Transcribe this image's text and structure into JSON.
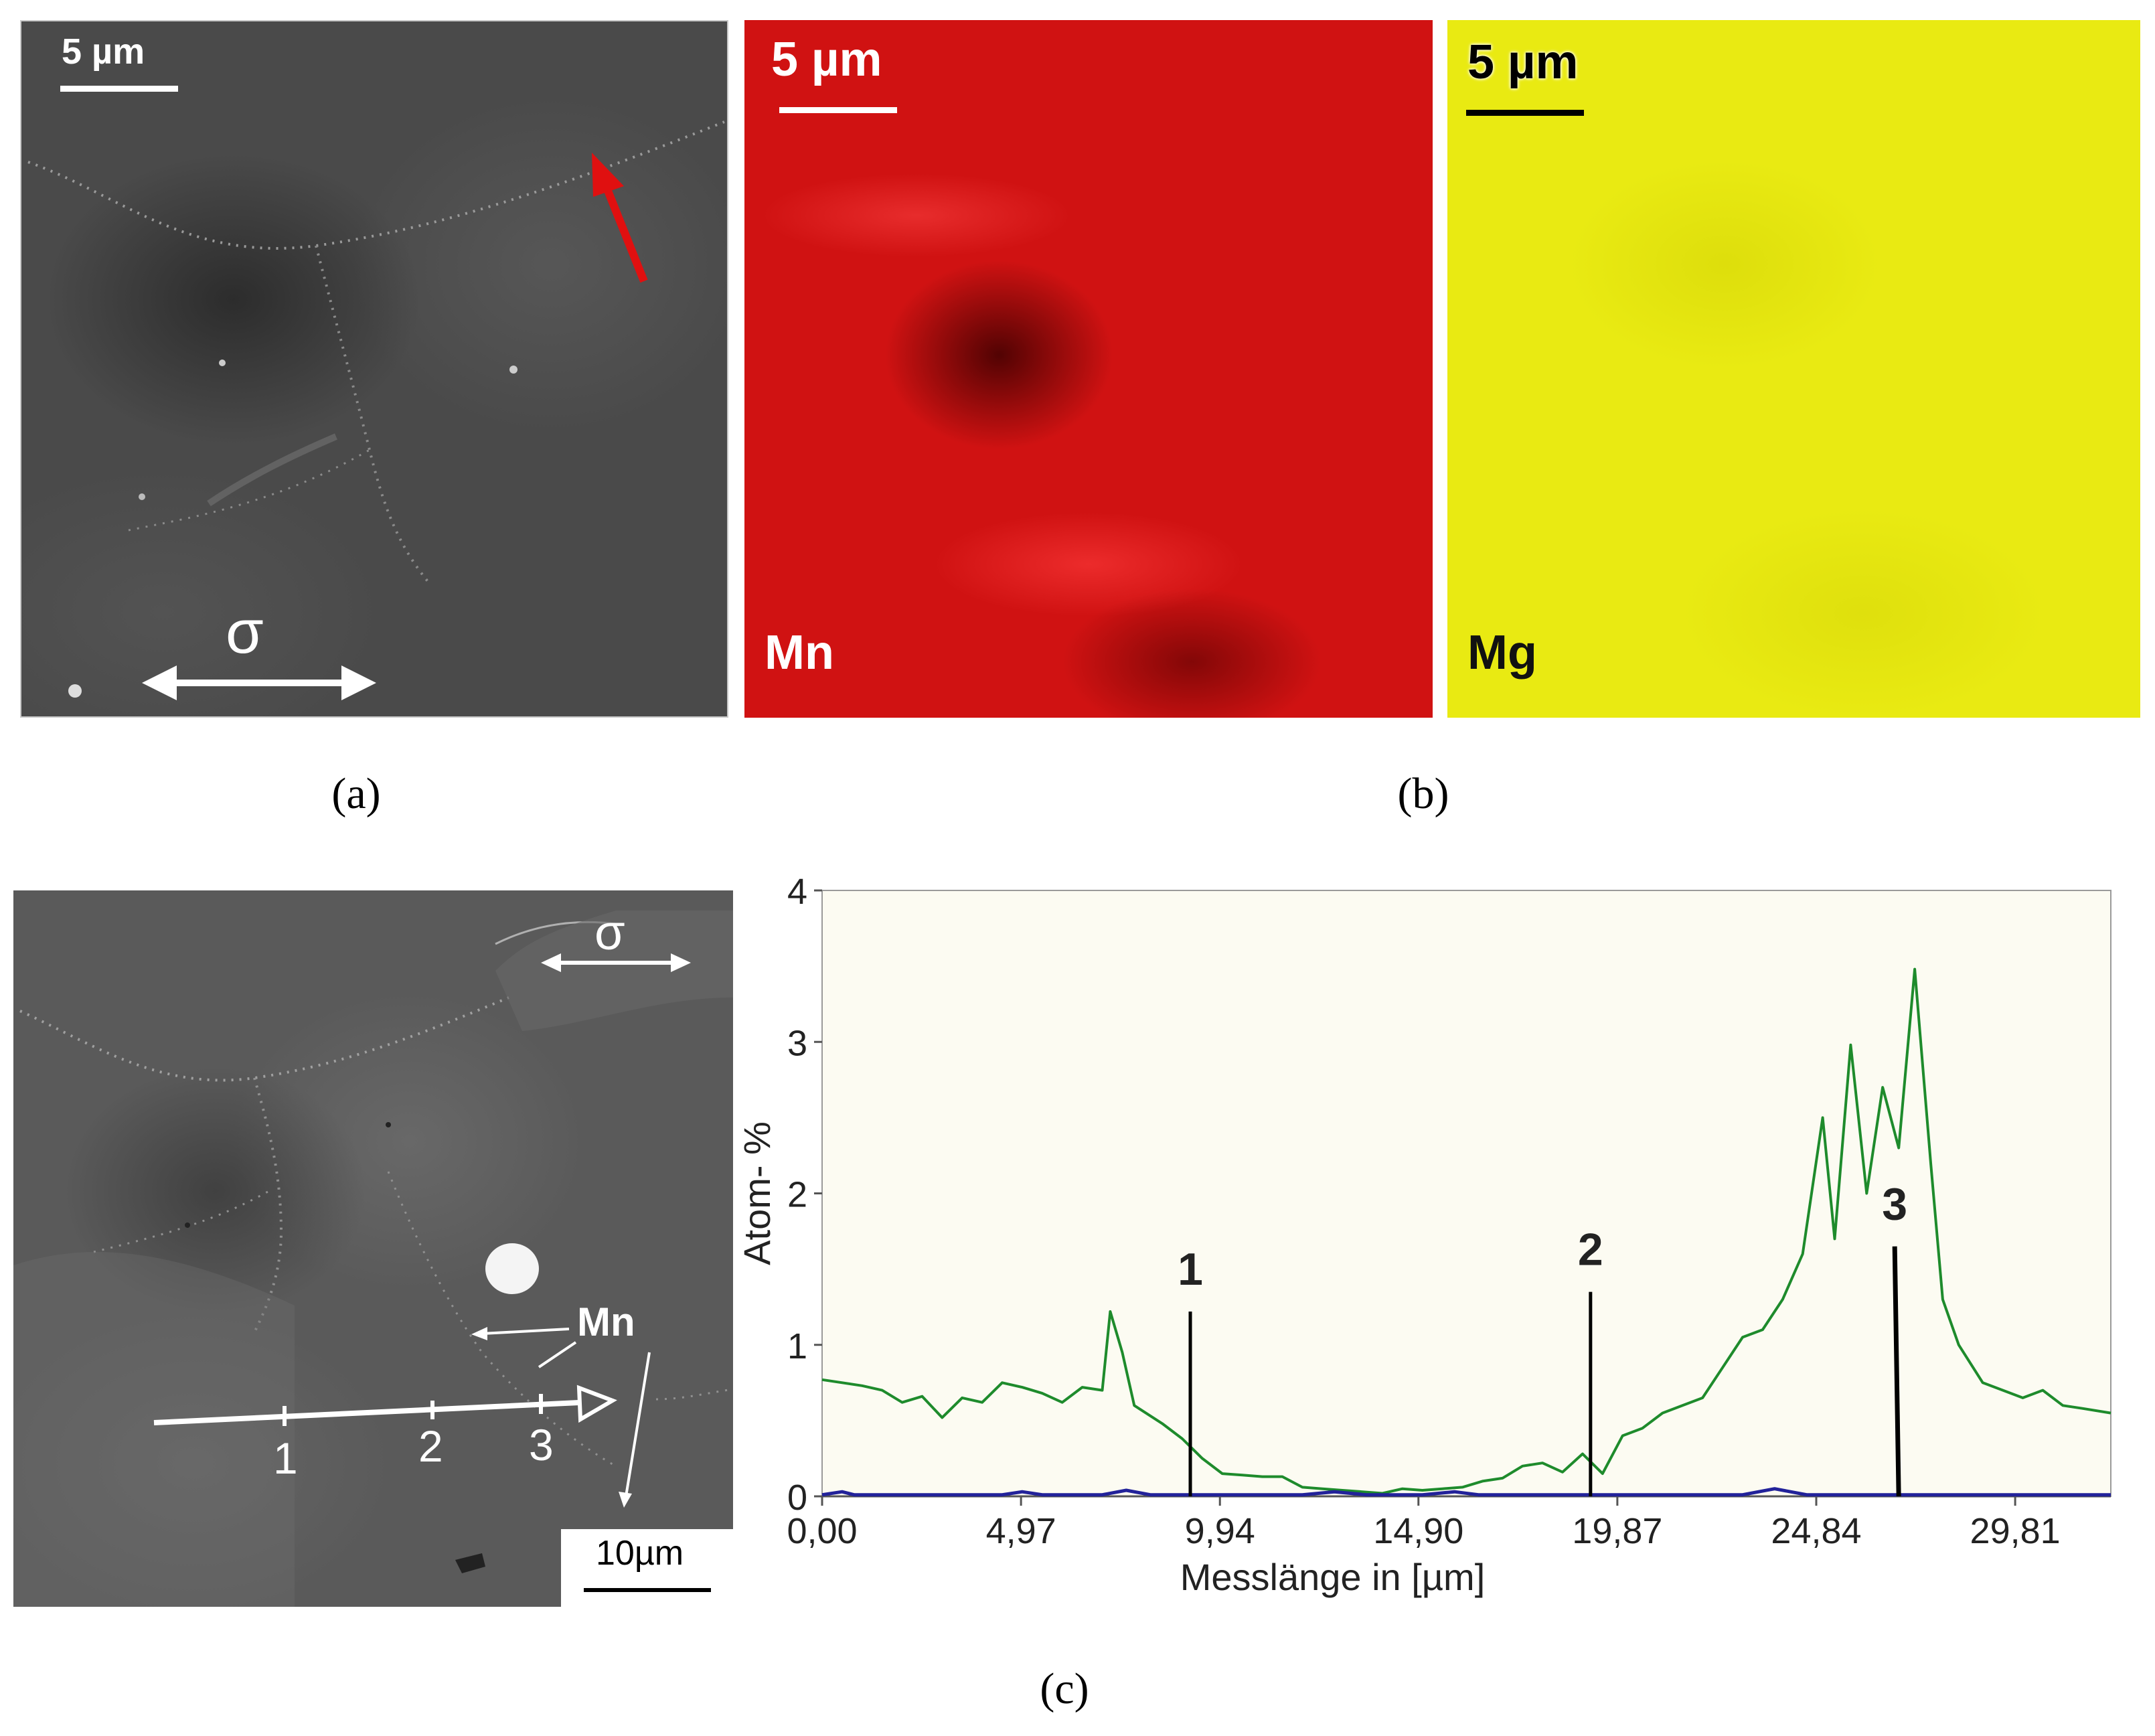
{
  "panel_a": {
    "scale_label": "5 µm",
    "stress_symbol": "σ",
    "caption": "(a)"
  },
  "panel_b": {
    "mn_map": {
      "scale_label": "5 µm",
      "element_label": "Mn",
      "color": "#d01212"
    },
    "mg_map": {
      "scale_label": "5 µm",
      "element_label": "Mg",
      "color": "#e9ea12"
    },
    "caption": "(b)"
  },
  "panel_c": {
    "image": {
      "stress_symbol": "σ",
      "mn_label": "Mn",
      "point_labels": [
        "1",
        "2",
        "3"
      ],
      "scale_label": "10µm"
    },
    "caption": "(c)"
  },
  "chart_data": {
    "type": "line",
    "title": "",
    "xlabel": "Messlänge in [µm]",
    "ylabel": "Atom- %",
    "xlim": [
      0,
      32.2
    ],
    "ylim": [
      0,
      4
    ],
    "x_ticks": [
      0,
      4.97,
      9.94,
      14.9,
      19.87,
      24.84,
      29.81
    ],
    "x_tick_labels": [
      "0,00",
      "4,97",
      "9,94",
      "14,90",
      "19,87",
      "24,84",
      "29,81"
    ],
    "y_ticks": [
      0,
      1,
      2,
      3,
      4
    ],
    "y_tick_labels": [
      "0",
      "1",
      "2",
      "3",
      "4"
    ],
    "grid": false,
    "background": "#fcfbf2",
    "series": [
      {
        "color": "#1e8b2c",
        "x": [
          0,
          1.0,
          1.5,
          2.0,
          2.5,
          3.0,
          3.5,
          4.0,
          4.5,
          5.0,
          5.5,
          6.0,
          6.5,
          7.0,
          7.2,
          7.5,
          7.8,
          8.5,
          9.0,
          9.5,
          10.0,
          10.5,
          11.0,
          11.5,
          12.0,
          12.5,
          13.0,
          13.5,
          14.0,
          14.5,
          15.0,
          15.5,
          16.0,
          16.5,
          17.0,
          17.5,
          18.0,
          18.5,
          19.0,
          19.5,
          20.0,
          20.5,
          21.0,
          21.5,
          22.0,
          22.5,
          23.0,
          23.5,
          24.0,
          24.5,
          25.0,
          25.3,
          25.7,
          26.1,
          26.5,
          26.9,
          27.3,
          27.7,
          28.0,
          28.4,
          29.0,
          30.0,
          30.5,
          31.0,
          31.5,
          32.2
        ],
        "y": [
          0.77,
          0.73,
          0.7,
          0.62,
          0.66,
          0.52,
          0.65,
          0.62,
          0.75,
          0.72,
          0.68,
          0.62,
          0.72,
          0.7,
          1.22,
          0.95,
          0.6,
          0.48,
          0.38,
          0.25,
          0.15,
          0.14,
          0.13,
          0.13,
          0.06,
          0.05,
          0.04,
          0.03,
          0.02,
          0.05,
          0.04,
          0.05,
          0.06,
          0.1,
          0.12,
          0.2,
          0.22,
          0.16,
          0.28,
          0.15,
          0.4,
          0.45,
          0.55,
          0.6,
          0.65,
          0.85,
          1.05,
          1.1,
          1.3,
          1.6,
          2.5,
          1.7,
          2.98,
          2.0,
          2.7,
          2.3,
          3.48,
          2.2,
          1.3,
          1.0,
          0.75,
          0.65,
          0.7,
          0.6,
          0.58,
          0.55
        ]
      },
      {
        "color": "#22229a",
        "x": [
          0,
          0.5,
          0.8,
          1.2,
          4.5,
          5.0,
          5.5,
          7.0,
          7.6,
          8.2,
          12.0,
          12.8,
          13.6,
          15.0,
          15.8,
          16.4,
          23.0,
          23.8,
          24.6,
          26.0,
          32.2
        ],
        "y": [
          0.01,
          0.03,
          0.01,
          0.01,
          0.01,
          0.03,
          0.01,
          0.01,
          0.04,
          0.01,
          0.01,
          0.03,
          0.01,
          0.01,
          0.03,
          0.01,
          0.01,
          0.05,
          0.01,
          0.01,
          0.01
        ]
      }
    ],
    "markers": [
      {
        "label": "1",
        "x": 9.2,
        "y_top": 1.22
      },
      {
        "label": "2",
        "x": 19.2,
        "y_top": 1.35
      },
      {
        "label": "3",
        "x": 26.8,
        "y_top": 1.65
      }
    ]
  }
}
